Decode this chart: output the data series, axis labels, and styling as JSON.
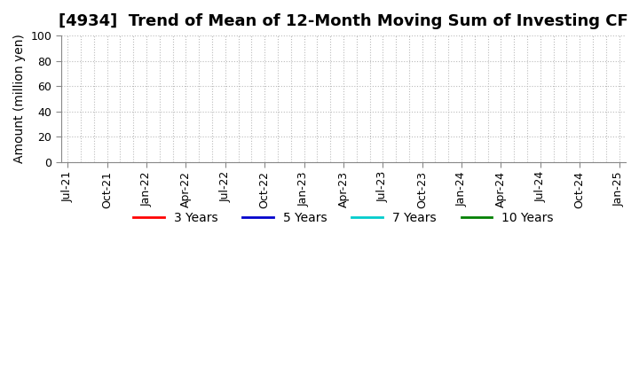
{
  "title": "[4934]  Trend of Mean of 12-Month Moving Sum of Investing CF",
  "ylabel": "Amount (million yen)",
  "ylim": [
    0,
    100
  ],
  "yticks": [
    0,
    20,
    40,
    60,
    80,
    100
  ],
  "x_tick_labels": [
    "Jul-21",
    "Oct-21",
    "Jan-22",
    "Apr-22",
    "Jul-22",
    "Oct-22",
    "Jan-23",
    "Apr-23",
    "Jul-23",
    "Oct-23",
    "Jan-24",
    "Apr-24",
    "Jul-24",
    "Oct-24",
    "Jan-25"
  ],
  "background_color": "#ffffff",
  "plot_bg_color": "#ffffff",
  "grid_color": "#bbbbbb",
  "legend_entries": [
    {
      "label": "3 Years",
      "color": "#ff0000"
    },
    {
      "label": "5 Years",
      "color": "#0000cc"
    },
    {
      "label": "7 Years",
      "color": "#00cccc"
    },
    {
      "label": "10 Years",
      "color": "#008000"
    }
  ],
  "title_fontsize": 13,
  "axis_label_fontsize": 10,
  "tick_fontsize": 9,
  "legend_fontsize": 10
}
